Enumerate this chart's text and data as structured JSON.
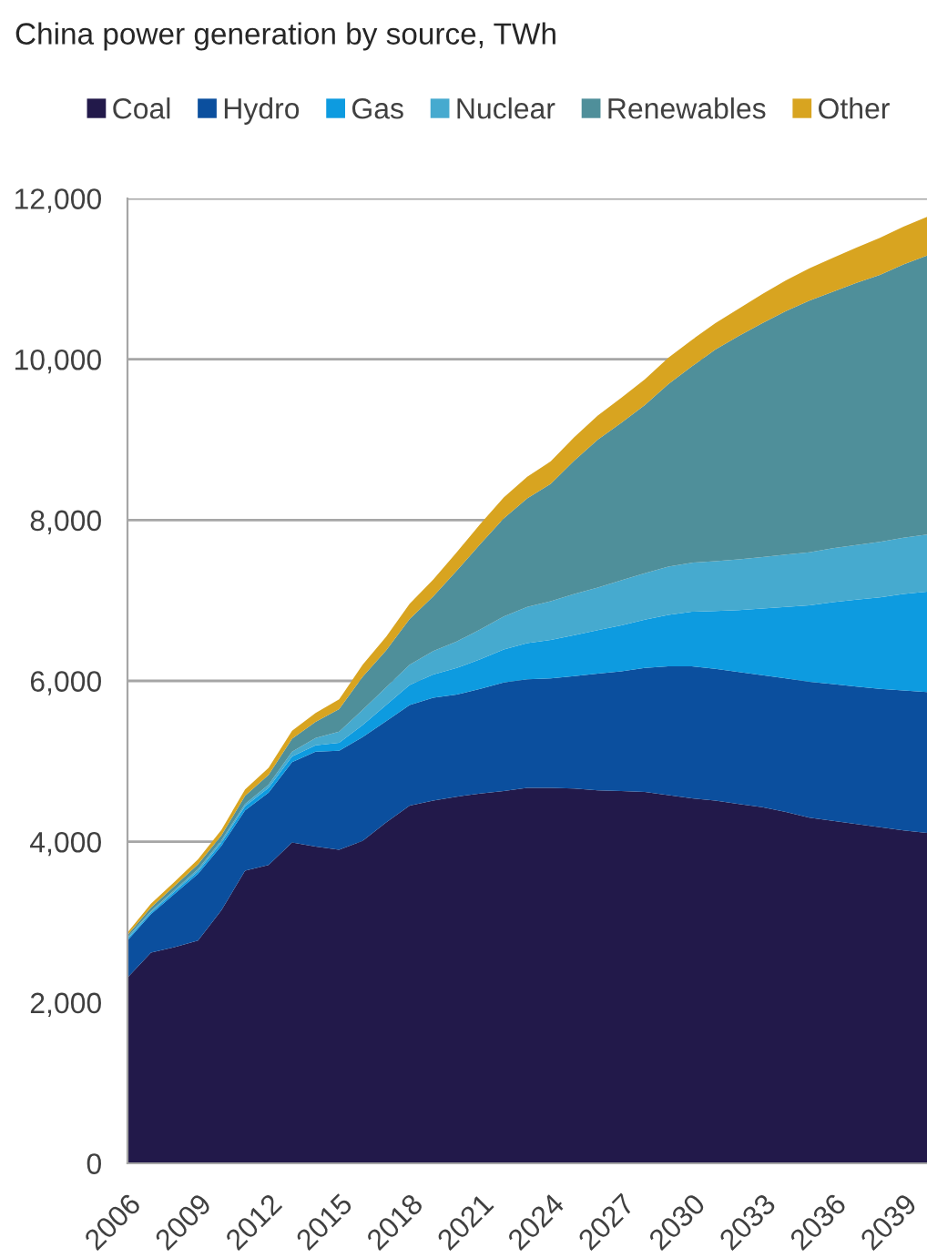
{
  "chart_data": {
    "type": "area",
    "title": "China power generation by source, TWh",
    "stacked": true,
    "x": [
      2006,
      2007,
      2008,
      2009,
      2010,
      2011,
      2012,
      2013,
      2014,
      2015,
      2016,
      2017,
      2018,
      2019,
      2020,
      2021,
      2022,
      2023,
      2024,
      2025,
      2026,
      2027,
      2028,
      2029,
      2030,
      2031,
      2032,
      2033,
      2034,
      2035,
      2036,
      2037,
      2038,
      2039,
      2040
    ],
    "series": [
      {
        "name": "Coal",
        "color": "#22194a",
        "values": [
          2310,
          2620,
          2690,
          2770,
          3150,
          3640,
          3710,
          3990,
          3940,
          3900,
          4010,
          4240,
          4450,
          4510,
          4560,
          4600,
          4630,
          4670,
          4670,
          4660,
          4640,
          4630,
          4620,
          4580,
          4540,
          4510,
          4470,
          4430,
          4370,
          4300,
          4260,
          4220,
          4180,
          4140,
          4110
        ]
      },
      {
        "name": "Hydro",
        "color": "#0b4f9e",
        "values": [
          460,
          480,
          660,
          830,
          800,
          750,
          900,
          1000,
          1180,
          1230,
          1290,
          1260,
          1250,
          1280,
          1270,
          1300,
          1350,
          1350,
          1360,
          1400,
          1450,
          1490,
          1540,
          1600,
          1640,
          1640,
          1640,
          1640,
          1660,
          1690,
          1700,
          1710,
          1720,
          1740,
          1750
        ]
      },
      {
        "name": "Gas",
        "color": "#0d9be0",
        "values": [
          20,
          20,
          30,
          30,
          40,
          50,
          60,
          70,
          80,
          100,
          150,
          200,
          250,
          290,
          330,
          370,
          410,
          450,
          480,
          510,
          540,
          570,
          600,
          640,
          680,
          720,
          770,
          830,
          890,
          950,
          1020,
          1080,
          1140,
          1200,
          1250
        ]
      },
      {
        "name": "Nuclear",
        "color": "#46aacf",
        "values": [
          20,
          20,
          20,
          30,
          30,
          30,
          40,
          60,
          90,
          140,
          190,
          220,
          250,
          290,
          330,
          370,
          410,
          450,
          480,
          510,
          530,
          560,
          580,
          600,
          610,
          620,
          630,
          640,
          650,
          660,
          670,
          680,
          690,
          700,
          710
        ]
      },
      {
        "name": "Renewables",
        "color": "#4f8f9a",
        "values": [
          30,
          40,
          50,
          60,
          60,
          100,
          120,
          160,
          200,
          280,
          410,
          460,
          570,
          680,
          880,
          1060,
          1220,
          1350,
          1460,
          1660,
          1840,
          1960,
          2090,
          2270,
          2440,
          2630,
          2780,
          2910,
          3030,
          3130,
          3190,
          3260,
          3320,
          3400,
          3470
        ]
      },
      {
        "name": "Other",
        "color": "#d8a420",
        "values": [
          30,
          50,
          50,
          60,
          70,
          80,
          90,
          100,
          110,
          120,
          150,
          170,
          190,
          210,
          230,
          250,
          260,
          270,
          280,
          290,
          300,
          310,
          320,
          330,
          330,
          330,
          340,
          360,
          380,
          400,
          420,
          440,
          460,
          470,
          480
        ]
      }
    ],
    "xlim": [
      2006,
      2040
    ],
    "xticks": [
      2006,
      2009,
      2012,
      2015,
      2018,
      2021,
      2024,
      2027,
      2030,
      2033,
      2036,
      2039
    ],
    "ylim": [
      0,
      12000
    ],
    "yticks": [
      0,
      {
        "value": 2000,
        "label": "2,000"
      },
      {
        "value": 4000,
        "label": "4,000"
      },
      {
        "value": 6000,
        "label": "6,000"
      },
      {
        "value": 8000,
        "label": "8,000"
      },
      {
        "value": 10000,
        "label": "10,000"
      },
      {
        "value": 12000,
        "label": "12,000"
      }
    ],
    "grid": "y",
    "legend": "top"
  }
}
